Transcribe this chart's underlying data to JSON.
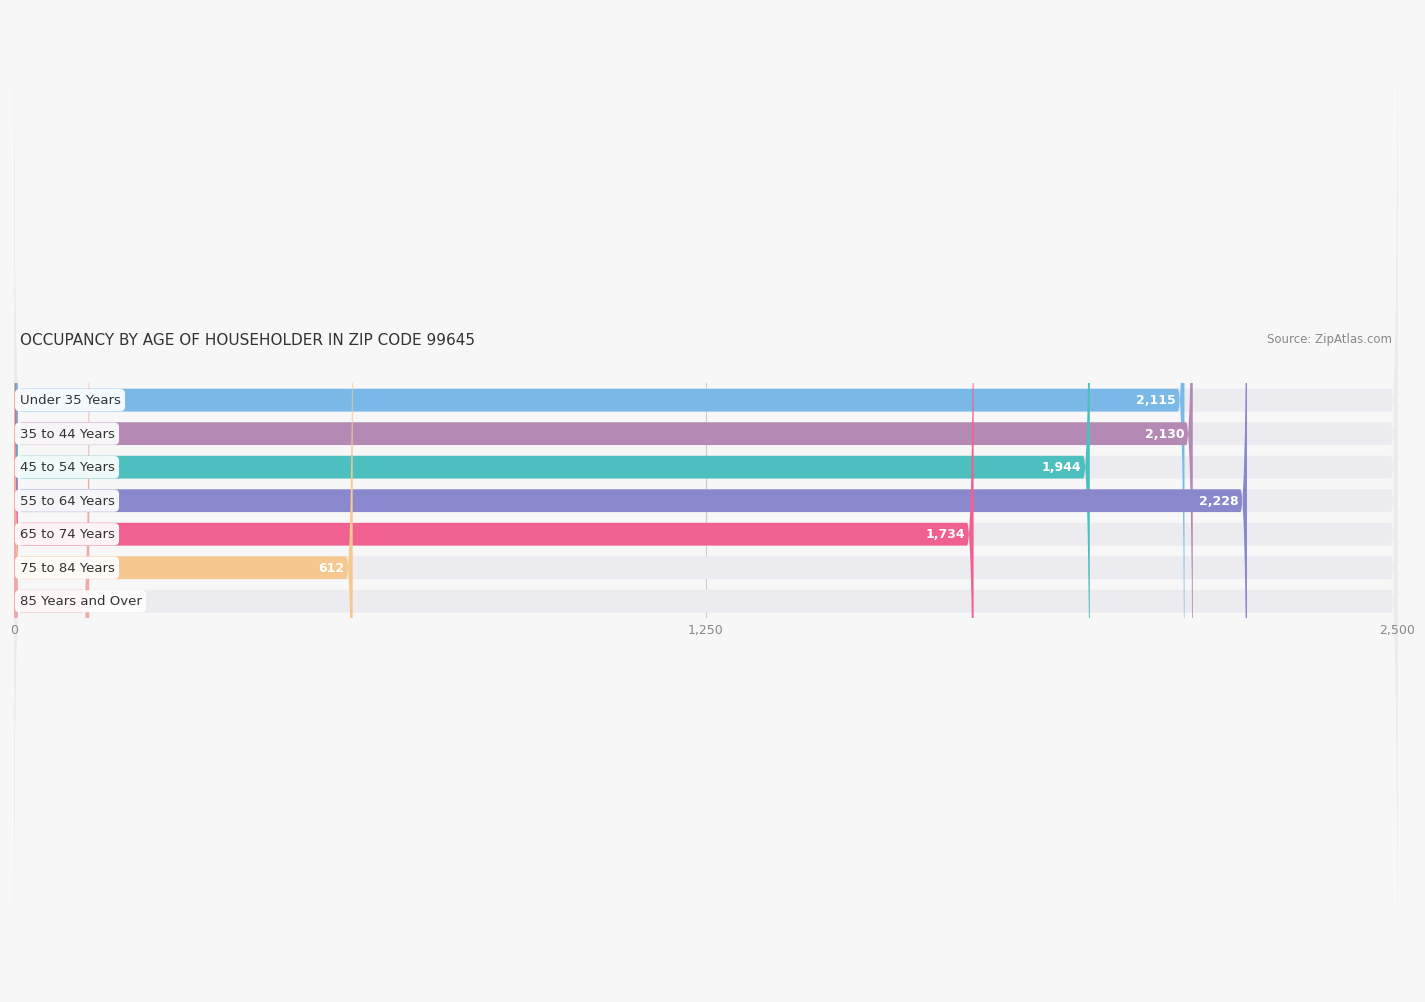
{
  "title": "OCCUPANCY BY AGE OF HOUSEHOLDER IN ZIP CODE 99645",
  "source": "Source: ZipAtlas.com",
  "categories": [
    "Under 35 Years",
    "35 to 44 Years",
    "45 to 54 Years",
    "55 to 64 Years",
    "65 to 74 Years",
    "75 to 84 Years",
    "85 Years and Over"
  ],
  "values": [
    2115,
    2130,
    1944,
    2228,
    1734,
    612,
    136
  ],
  "bar_colors": [
    "#7ab8e8",
    "#b48ab4",
    "#4dbfbf",
    "#8a88cc",
    "#f06090",
    "#f5c890",
    "#f0a8a8"
  ],
  "bar_bg_colors": [
    "#ebebf0",
    "#ebebf0",
    "#ebebf0",
    "#ebebf0",
    "#ebebf0",
    "#ebebf0",
    "#ebebf0"
  ],
  "xlim": [
    0,
    2500
  ],
  "xticks": [
    0,
    1250,
    2500
  ],
  "xtick_labels": [
    "0",
    "1,250",
    "2,500"
  ],
  "title_fontsize": 11,
  "source_fontsize": 8.5,
  "label_fontsize": 9.5,
  "value_fontsize": 9,
  "bar_height": 0.68,
  "background_color": "#f7f7f7",
  "value_threshold": 400
}
